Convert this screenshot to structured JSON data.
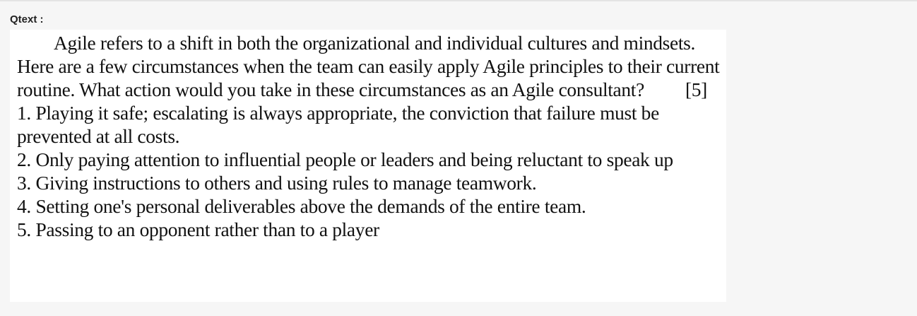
{
  "question": {
    "label": "Qtext :",
    "intro": "Agile refers to a shift in both the organizational and individual cultures and mindsets.  Here are a few circumstances when the team can easily apply Agile principles to their current routine. What action would you take in these circumstances as an Agile consultant?",
    "marks": "[5]",
    "items": [
      "1. Playing it safe; escalating is always appropriate, the conviction that failure must be prevented at all costs.",
      "2. Only paying attention to influential people or leaders and being reluctant to speak up",
      "3. Giving instructions to others and using rules to manage teamwork.",
      "4. Setting one's personal deliverables above the demands of the entire team.",
      "5. Passing to an opponent rather than to a player"
    ]
  }
}
